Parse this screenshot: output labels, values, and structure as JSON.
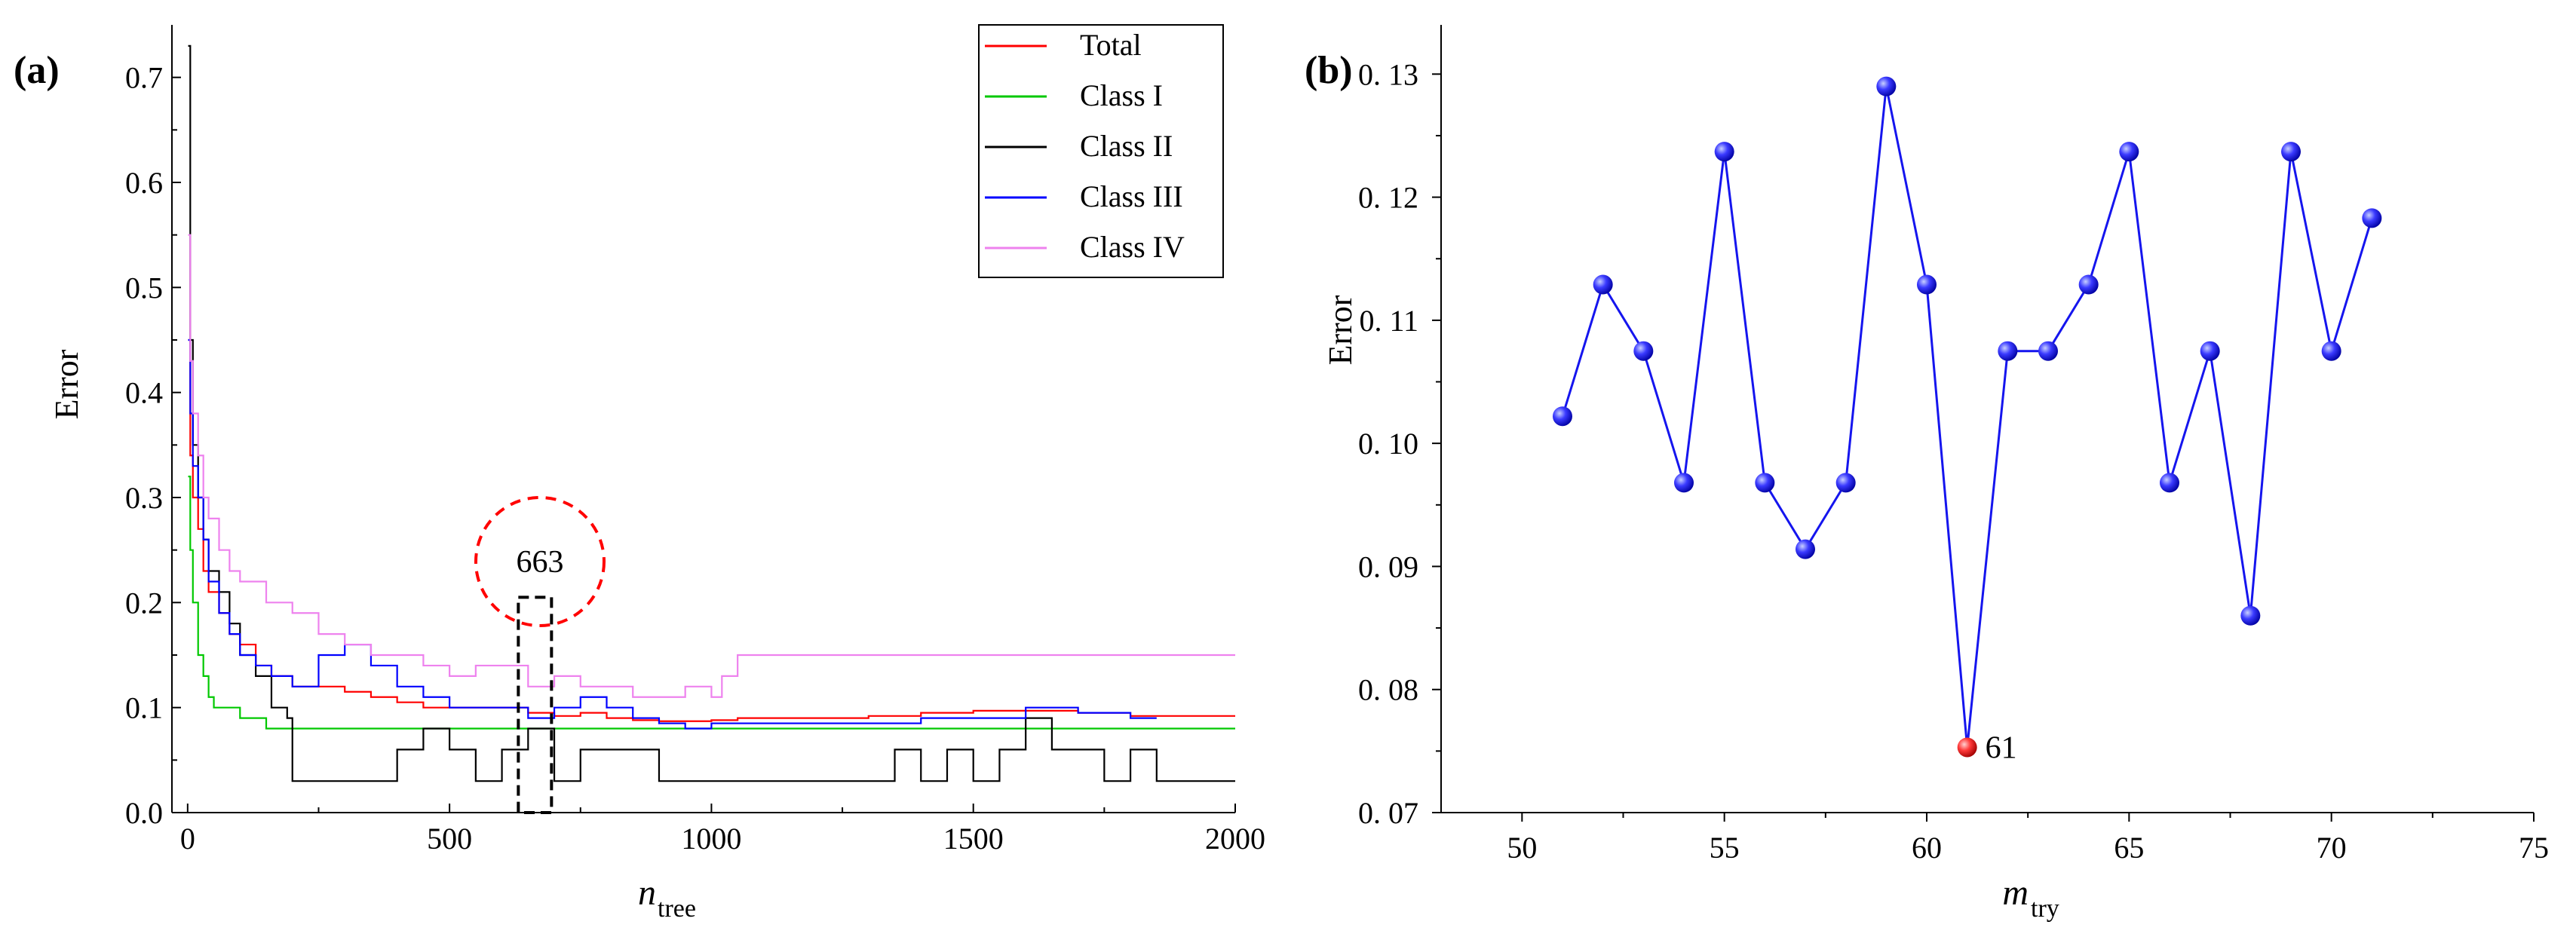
{
  "chart_data": [
    {
      "panel_label": "(a)",
      "type": "line",
      "xlabel_main": "n",
      "xlabel_sub": "tree",
      "ylabel": "Error",
      "xlim": [
        -30,
        2000
      ],
      "ylim": [
        0.0,
        0.75
      ],
      "x_ticks": [
        0,
        500,
        1000,
        1500,
        2000
      ],
      "x_tick_labels": [
        "0",
        "500",
        "1000",
        "1500",
        "2000"
      ],
      "y_ticks": [
        0.0,
        0.1,
        0.2,
        0.3,
        0.4,
        0.5,
        0.6,
        0.7
      ],
      "y_tick_labels": [
        "0.0",
        "0.1",
        "0.2",
        "0.3",
        "0.4",
        "0.5",
        "0.6",
        "0.7"
      ],
      "legend_position": "top-right",
      "annotation": {
        "text": "663",
        "x": 663
      },
      "series": [
        {
          "name": "Total",
          "color": "#ff0000",
          "points": [
            [
              1,
              0.45
            ],
            [
              5,
              0.34
            ],
            [
              10,
              0.3
            ],
            [
              20,
              0.27
            ],
            [
              30,
              0.23
            ],
            [
              40,
              0.21
            ],
            [
              60,
              0.19
            ],
            [
              80,
              0.17
            ],
            [
              100,
              0.16
            ],
            [
              130,
              0.14
            ],
            [
              160,
              0.13
            ],
            [
              200,
              0.12
            ],
            [
              250,
              0.12
            ],
            [
              300,
              0.115
            ],
            [
              350,
              0.11
            ],
            [
              400,
              0.105
            ],
            [
              450,
              0.1
            ],
            [
              500,
              0.1
            ],
            [
              550,
              0.1
            ],
            [
              600,
              0.1
            ],
            [
              650,
              0.095
            ],
            [
              700,
              0.092
            ],
            [
              750,
              0.095
            ],
            [
              800,
              0.09
            ],
            [
              850,
              0.088
            ],
            [
              900,
              0.087
            ],
            [
              950,
              0.087
            ],
            [
              1000,
              0.088
            ],
            [
              1050,
              0.09
            ],
            [
              1100,
              0.09
            ],
            [
              1200,
              0.09
            ],
            [
              1300,
              0.092
            ],
            [
              1400,
              0.095
            ],
            [
              1500,
              0.097
            ],
            [
              1600,
              0.097
            ],
            [
              1700,
              0.095
            ],
            [
              1800,
              0.092
            ],
            [
              1900,
              0.092
            ],
            [
              2000,
              0.092
            ]
          ]
        },
        {
          "name": "Class I",
          "color": "#00c800",
          "points": [
            [
              1,
              0.32
            ],
            [
              5,
              0.25
            ],
            [
              10,
              0.2
            ],
            [
              20,
              0.15
            ],
            [
              30,
              0.13
            ],
            [
              40,
              0.11
            ],
            [
              50,
              0.1
            ],
            [
              80,
              0.1
            ],
            [
              100,
              0.09
            ],
            [
              150,
              0.08
            ],
            [
              200,
              0.08
            ],
            [
              300,
              0.08
            ],
            [
              400,
              0.08
            ],
            [
              500,
              0.08
            ],
            [
              600,
              0.08
            ],
            [
              700,
              0.08
            ],
            [
              800,
              0.08
            ],
            [
              1000,
              0.08
            ],
            [
              1200,
              0.08
            ],
            [
              1500,
              0.08
            ],
            [
              1800,
              0.08
            ],
            [
              2000,
              0.08
            ]
          ]
        },
        {
          "name": "Class II",
          "color": "#000000",
          "points": [
            [
              1,
              0.73
            ],
            [
              5,
              0.45
            ],
            [
              10,
              0.35
            ],
            [
              20,
              0.3
            ],
            [
              30,
              0.26
            ],
            [
              40,
              0.23
            ],
            [
              60,
              0.21
            ],
            [
              80,
              0.18
            ],
            [
              100,
              0.15
            ],
            [
              130,
              0.13
            ],
            [
              160,
              0.1
            ],
            [
              190,
              0.09
            ],
            [
              200,
              0.03
            ],
            [
              300,
              0.03
            ],
            [
              400,
              0.06
            ],
            [
              450,
              0.08
            ],
            [
              500,
              0.06
            ],
            [
              550,
              0.03
            ],
            [
              600,
              0.06
            ],
            [
              650,
              0.08
            ],
            [
              700,
              0.03
            ],
            [
              750,
              0.06
            ],
            [
              800,
              0.06
            ],
            [
              900,
              0.03
            ],
            [
              1000,
              0.03
            ],
            [
              1100,
              0.03
            ],
            [
              1200,
              0.03
            ],
            [
              1300,
              0.03
            ],
            [
              1350,
              0.06
            ],
            [
              1400,
              0.03
            ],
            [
              1450,
              0.06
            ],
            [
              1500,
              0.03
            ],
            [
              1550,
              0.06
            ],
            [
              1600,
              0.09
            ],
            [
              1650,
              0.06
            ],
            [
              1700,
              0.06
            ],
            [
              1750,
              0.03
            ],
            [
              1800,
              0.06
            ],
            [
              1850,
              0.03
            ],
            [
              1900,
              0.03
            ],
            [
              2000,
              0.03
            ]
          ]
        },
        {
          "name": "Class III",
          "color": "#0000ff",
          "points": [
            [
              1,
              0.45
            ],
            [
              5,
              0.38
            ],
            [
              10,
              0.33
            ],
            [
              20,
              0.3
            ],
            [
              30,
              0.26
            ],
            [
              40,
              0.22
            ],
            [
              60,
              0.19
            ],
            [
              80,
              0.17
            ],
            [
              100,
              0.15
            ],
            [
              130,
              0.14
            ],
            [
              160,
              0.13
            ],
            [
              200,
              0.12
            ],
            [
              250,
              0.15
            ],
            [
              300,
              0.16
            ],
            [
              350,
              0.14
            ],
            [
              400,
              0.12
            ],
            [
              450,
              0.11
            ],
            [
              500,
              0.1
            ],
            [
              550,
              0.1
            ],
            [
              600,
              0.1
            ],
            [
              650,
              0.09
            ],
            [
              700,
              0.1
            ],
            [
              750,
              0.11
            ],
            [
              800,
              0.1
            ],
            [
              850,
              0.09
            ],
            [
              900,
              0.085
            ],
            [
              950,
              0.08
            ],
            [
              1000,
              0.085
            ],
            [
              1100,
              0.085
            ],
            [
              1200,
              0.085
            ],
            [
              1300,
              0.085
            ],
            [
              1400,
              0.09
            ],
            [
              1500,
              0.09
            ],
            [
              1600,
              0.1
            ],
            [
              1700,
              0.095
            ],
            [
              1800,
              0.09
            ],
            [
              1850,
              0.09
            ]
          ]
        },
        {
          "name": "Class IV",
          "color": "#ee82ee",
          "points": [
            [
              1,
              0.55
            ],
            [
              5,
              0.43
            ],
            [
              10,
              0.38
            ],
            [
              20,
              0.34
            ],
            [
              30,
              0.3
            ],
            [
              40,
              0.28
            ],
            [
              60,
              0.25
            ],
            [
              80,
              0.23
            ],
            [
              100,
              0.22
            ],
            [
              150,
              0.2
            ],
            [
              200,
              0.19
            ],
            [
              250,
              0.17
            ],
            [
              300,
              0.16
            ],
            [
              350,
              0.15
            ],
            [
              400,
              0.15
            ],
            [
              450,
              0.14
            ],
            [
              500,
              0.13
            ],
            [
              550,
              0.14
            ],
            [
              600,
              0.14
            ],
            [
              650,
              0.12
            ],
            [
              700,
              0.13
            ],
            [
              750,
              0.12
            ],
            [
              800,
              0.12
            ],
            [
              850,
              0.11
            ],
            [
              900,
              0.11
            ],
            [
              950,
              0.12
            ],
            [
              1000,
              0.11
            ],
            [
              1020,
              0.13
            ],
            [
              1050,
              0.15
            ],
            [
              1100,
              0.15
            ],
            [
              1300,
              0.15
            ],
            [
              1600,
              0.15
            ],
            [
              2000,
              0.15
            ]
          ]
        }
      ]
    },
    {
      "panel_label": "(b)",
      "type": "line",
      "xlabel_main": "m",
      "xlabel_sub": "try",
      "ylabel": "Error",
      "xlim": [
        48,
        75
      ],
      "ylim": [
        0.07,
        0.134
      ],
      "x_ticks": [
        50,
        55,
        60,
        65,
        70,
        75
      ],
      "x_tick_labels": [
        "50",
        "55",
        "60",
        "65",
        "70",
        "75"
      ],
      "y_ticks": [
        0.07,
        0.08,
        0.09,
        0.1,
        0.11,
        0.12,
        0.13
      ],
      "y_tick_labels": [
        "0. 07",
        "0. 08",
        "0. 09",
        "0. 10",
        "0. 11",
        "0. 12",
        "0. 13"
      ],
      "line_color": "#1515ee",
      "highlight_color": "#ee2222",
      "highlight": {
        "x": 61,
        "label": "61"
      },
      "x": [
        51,
        52,
        53,
        54,
        55,
        56,
        57,
        58,
        59,
        60,
        61,
        62,
        63,
        64,
        65,
        66,
        67,
        68,
        69,
        70,
        71
      ],
      "y": [
        0.1022,
        0.1129,
        0.1075,
        0.0968,
        0.1237,
        0.0968,
        0.0914,
        0.0968,
        0.129,
        0.1129,
        0.0753,
        0.1075,
        0.1075,
        0.1129,
        0.1237,
        0.0968,
        0.1075,
        0.086,
        0.1237,
        0.1075,
        0.1183
      ]
    }
  ]
}
